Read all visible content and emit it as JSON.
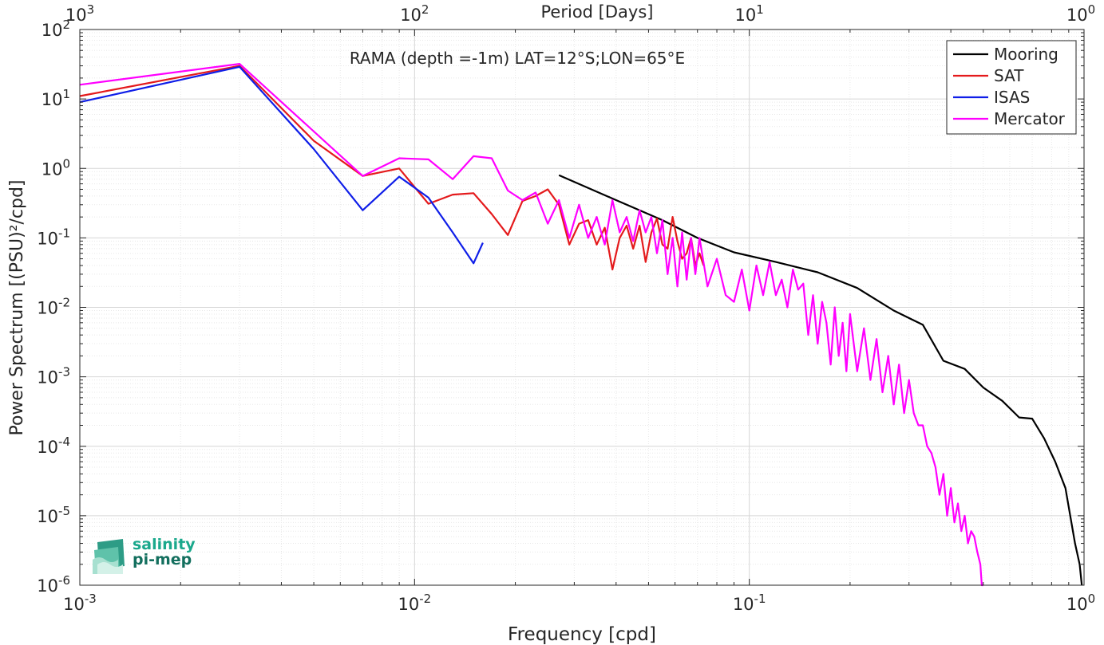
{
  "chart_data": {
    "type": "line",
    "title": "RAMA (depth =-1m) LAT=12°S;LON=65°E",
    "xlabel": "Frequency [cpd]",
    "ylabel": "Power Spectrum [(PSU)²/cpd]",
    "top_xlabel": "Period [Days]",
    "xscale": "log",
    "yscale": "log",
    "xlim": [
      0.001,
      1
    ],
    "ylim": [
      1e-06,
      100
    ],
    "grid": true,
    "minor_grid": true,
    "legend_position": "top-right",
    "x_ticks": [
      {
        "value": 0.001,
        "base": "10",
        "exp": "-3"
      },
      {
        "value": 0.01,
        "base": "10",
        "exp": "-2"
      },
      {
        "value": 0.1,
        "base": "10",
        "exp": "-1"
      },
      {
        "value": 1,
        "base": "10",
        "exp": "0"
      }
    ],
    "y_ticks": [
      {
        "value": 1e-06,
        "base": "10",
        "exp": "-6"
      },
      {
        "value": 1e-05,
        "base": "10",
        "exp": "-5"
      },
      {
        "value": 0.0001,
        "base": "10",
        "exp": "-4"
      },
      {
        "value": 0.001,
        "base": "10",
        "exp": "-3"
      },
      {
        "value": 0.01,
        "base": "10",
        "exp": "-2"
      },
      {
        "value": 0.1,
        "base": "10",
        "exp": "-1"
      },
      {
        "value": 1,
        "base": "10",
        "exp": "0"
      },
      {
        "value": 10,
        "base": "10",
        "exp": "1"
      },
      {
        "value": 100,
        "base": "10",
        "exp": "2"
      }
    ],
    "top_ticks": [
      {
        "value": 0.001,
        "base": "10",
        "exp": "3"
      },
      {
        "value": 0.01,
        "base": "10",
        "exp": "2"
      },
      {
        "value": 0.1,
        "base": "10",
        "exp": "1"
      },
      {
        "value": 1,
        "base": "10",
        "exp": "0"
      }
    ],
    "series": [
      {
        "name": "Mooring",
        "color": "#000000",
        "x": [
          0.027,
          0.04,
          0.055,
          0.07,
          0.09,
          0.12,
          0.16,
          0.21,
          0.27,
          0.33,
          0.38,
          0.44,
          0.5,
          0.57,
          0.64,
          0.7,
          0.76,
          0.82,
          0.88,
          0.94,
          0.97,
          0.985
        ],
        "y": [
          0.8,
          0.35,
          0.18,
          0.1,
          0.062,
          0.045,
          0.032,
          0.019,
          0.009,
          0.0056,
          0.0017,
          0.0013,
          0.0007,
          0.00045,
          0.00026,
          0.00025,
          0.00013,
          6e-05,
          2.5e-05,
          4e-06,
          2e-06,
          8e-07
        ]
      },
      {
        "name": "SAT",
        "color": "#e41a1c",
        "x": [
          0.001,
          0.003,
          0.005,
          0.007,
          0.009,
          0.011,
          0.013,
          0.015,
          0.017,
          0.019,
          0.021,
          0.023,
          0.025,
          0.027,
          0.029,
          0.031,
          0.033,
          0.035,
          0.037,
          0.039,
          0.041,
          0.043,
          0.045,
          0.047,
          0.049,
          0.051,
          0.053,
          0.055,
          0.057,
          0.059,
          0.061,
          0.063,
          0.065,
          0.067,
          0.069,
          0.071,
          0.073
        ],
        "y": [
          11,
          30,
          2.5,
          0.78,
          1.0,
          0.31,
          0.42,
          0.44,
          0.22,
          0.11,
          0.34,
          0.4,
          0.5,
          0.3,
          0.08,
          0.16,
          0.18,
          0.08,
          0.14,
          0.035,
          0.1,
          0.15,
          0.07,
          0.15,
          0.045,
          0.12,
          0.19,
          0.08,
          0.07,
          0.2,
          0.09,
          0.05,
          0.06,
          0.1,
          0.04,
          0.06,
          0.04
        ]
      },
      {
        "name": "ISAS",
        "color": "#0f1ee8",
        "x": [
          0.001,
          0.003,
          0.005,
          0.007,
          0.009,
          0.011,
          0.013,
          0.015,
          0.016
        ],
        "y": [
          9,
          29,
          1.9,
          0.25,
          0.76,
          0.38,
          0.12,
          0.043,
          0.085
        ]
      },
      {
        "name": "Mercator",
        "color": "#ff00ff",
        "x": [
          0.001,
          0.003,
          0.007,
          0.009,
          0.011,
          0.013,
          0.015,
          0.017,
          0.019,
          0.021,
          0.023,
          0.025,
          0.027,
          0.029,
          0.031,
          0.033,
          0.035,
          0.037,
          0.039,
          0.041,
          0.043,
          0.045,
          0.047,
          0.049,
          0.051,
          0.053,
          0.055,
          0.057,
          0.059,
          0.061,
          0.063,
          0.065,
          0.067,
          0.069,
          0.071,
          0.075,
          0.08,
          0.085,
          0.09,
          0.095,
          0.1,
          0.105,
          0.11,
          0.115,
          0.12,
          0.125,
          0.13,
          0.135,
          0.14,
          0.145,
          0.15,
          0.155,
          0.16,
          0.165,
          0.17,
          0.175,
          0.18,
          0.185,
          0.19,
          0.195,
          0.2,
          0.21,
          0.22,
          0.23,
          0.24,
          0.25,
          0.26,
          0.27,
          0.28,
          0.29,
          0.3,
          0.31,
          0.32,
          0.33,
          0.34,
          0.35,
          0.36,
          0.37,
          0.38,
          0.39,
          0.4,
          0.41,
          0.42,
          0.43,
          0.44,
          0.45,
          0.46,
          0.47,
          0.48,
          0.49,
          0.495,
          0.5
        ],
        "y": [
          16,
          32,
          0.78,
          1.4,
          1.35,
          0.7,
          1.5,
          1.4,
          0.48,
          0.35,
          0.45,
          0.16,
          0.35,
          0.1,
          0.3,
          0.1,
          0.2,
          0.08,
          0.35,
          0.12,
          0.2,
          0.09,
          0.25,
          0.12,
          0.2,
          0.06,
          0.18,
          0.03,
          0.1,
          0.02,
          0.12,
          0.025,
          0.1,
          0.03,
          0.1,
          0.02,
          0.05,
          0.015,
          0.012,
          0.035,
          0.009,
          0.04,
          0.015,
          0.045,
          0.015,
          0.025,
          0.01,
          0.035,
          0.018,
          0.022,
          0.004,
          0.015,
          0.003,
          0.012,
          0.006,
          0.0015,
          0.01,
          0.002,
          0.006,
          0.0012,
          0.008,
          0.0012,
          0.005,
          0.0009,
          0.0035,
          0.0006,
          0.002,
          0.0004,
          0.0015,
          0.0003,
          0.0009,
          0.0003,
          0.0002,
          0.0002,
          0.0001,
          8e-05,
          5e-05,
          2e-05,
          4e-05,
          1e-05,
          2.5e-05,
          8e-06,
          1.5e-05,
          6e-06,
          1e-05,
          4e-06,
          6e-06,
          5e-06,
          3e-06,
          2e-06,
          1e-06,
          8e-07
        ]
      }
    ]
  },
  "logo": {
    "line1": "salinity",
    "line2": "pi-mep"
  }
}
